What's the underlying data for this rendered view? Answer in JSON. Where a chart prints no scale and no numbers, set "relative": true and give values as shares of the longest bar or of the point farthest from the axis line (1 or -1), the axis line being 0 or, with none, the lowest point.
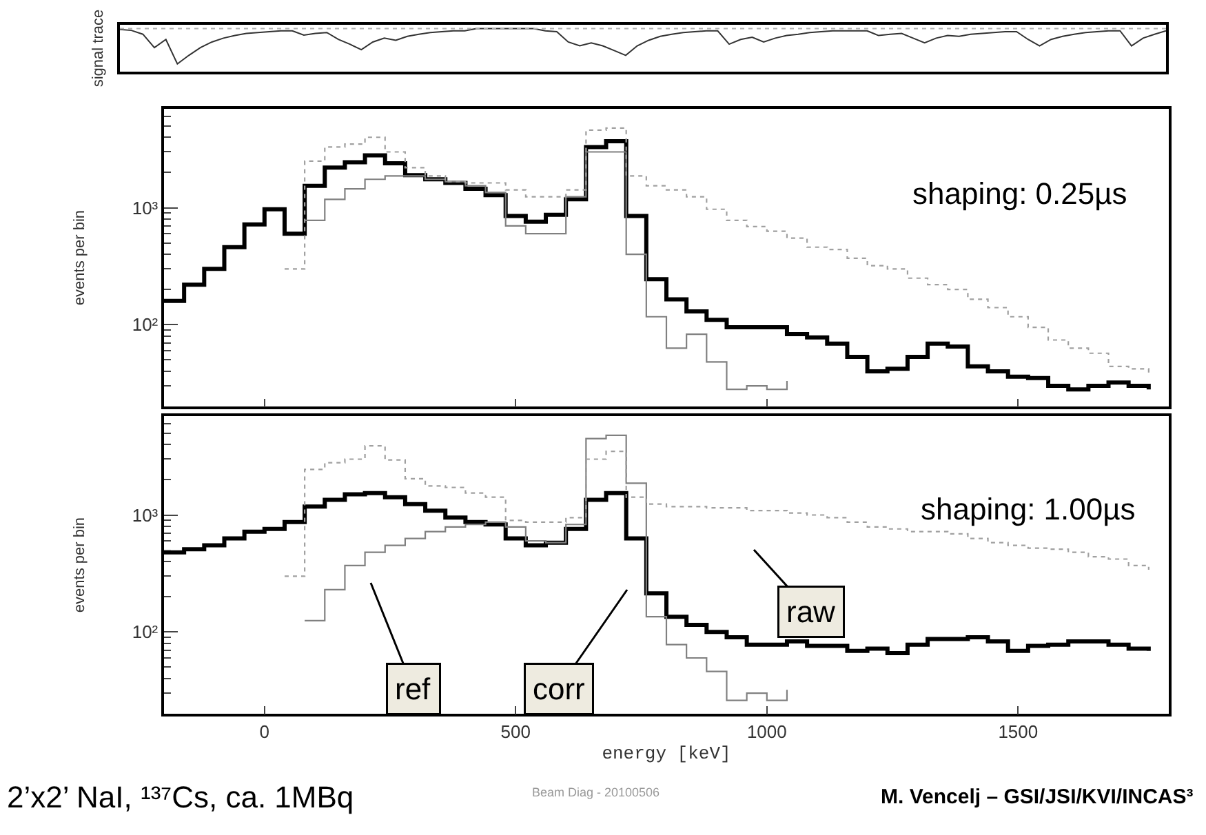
{
  "chart_data": [
    {
      "type": "line",
      "relative": true,
      "ylabel": "signal trace",
      "categories": [
        null,
        null,
        null,
        null,
        null,
        null,
        null,
        null,
        null,
        null,
        null,
        null,
        null,
        null,
        null,
        null,
        null,
        null,
        null,
        null,
        null,
        null,
        null,
        null,
        null,
        null,
        null,
        null,
        null,
        null,
        null,
        null,
        null,
        null,
        null,
        null,
        null,
        null,
        null,
        null,
        null,
        null,
        null,
        null,
        null,
        null,
        null,
        null,
        null,
        null,
        null,
        null,
        null,
        null,
        null,
        null,
        null,
        null,
        null,
        null,
        null,
        null,
        null,
        null,
        null,
        null,
        null,
        null,
        null,
        null,
        null,
        null,
        null,
        null,
        null,
        null,
        null,
        null,
        null,
        null,
        null,
        null,
        null,
        null,
        null,
        null,
        null,
        null,
        null,
        null,
        null,
        null
      ],
      "series": [
        {
          "color": "#333333",
          "values": [
            0.98,
            0.96,
            0.87,
            0.56,
            0.75,
            0.18,
            0.38,
            0.56,
            0.69,
            0.78,
            0.84,
            0.89,
            0.91,
            0.93,
            0.95,
            0.95,
            0.85,
            0.89,
            0.91,
            0.75,
            0.64,
            0.51,
            0.69,
            0.78,
            0.73,
            0.82,
            0.87,
            0.91,
            0.93,
            0.95,
            0.95,
            1.0,
            1.0,
            1.0,
            1.0,
            1.0,
            1.0,
            0.95,
            0.93,
            0.69,
            0.6,
            0.67,
            0.6,
            0.49,
            0.38,
            0.6,
            0.73,
            0.82,
            0.87,
            0.91,
            0.93,
            0.95,
            0.95,
            0.64,
            0.75,
            0.8,
            0.69,
            0.78,
            0.84,
            0.87,
            0.91,
            0.93,
            0.95,
            0.95,
            0.95,
            0.95,
            0.84,
            0.87,
            0.89,
            0.78,
            0.67,
            0.78,
            0.84,
            0.82,
            0.87,
            0.89,
            0.91,
            0.93,
            0.93,
            0.75,
            0.6,
            0.75,
            0.82,
            0.87,
            0.91,
            0.93,
            0.95,
            0.95,
            0.6,
            0.78,
            0.87,
            0.95
          ]
        }
      ],
      "ref_lines": [
        {
          "axis": "y",
          "value": 1,
          "color": "#b0b0b0",
          "line_style": "dotted"
        }
      ]
    },
    {
      "type": "step",
      "ylabel": "events per bin",
      "log": true,
      "tick_labels": "y",
      "xlim": [
        -200,
        1800
      ],
      "xticks": [
        0,
        500,
        1000,
        1500
      ],
      "ylim": [
        20,
        7000
      ],
      "yticks": [
        {
          "value": 20,
          "label": null
        },
        {
          "value": 30,
          "label": null
        },
        {
          "value": 40,
          "label": null
        },
        {
          "value": 50,
          "label": null
        },
        {
          "value": 60,
          "label": null
        },
        {
          "value": 70,
          "label": null
        },
        {
          "value": 80,
          "label": null
        },
        {
          "value": 90,
          "label": null
        },
        {
          "value": 100,
          "label": "10²"
        },
        {
          "value": 200,
          "label": null
        },
        {
          "value": 300,
          "label": null
        },
        {
          "value": 400,
          "label": null
        },
        {
          "value": 500,
          "label": null
        },
        {
          "value": 600,
          "label": null
        },
        {
          "value": 700,
          "label": null
        },
        {
          "value": 800,
          "label": null
        },
        {
          "value": 900,
          "label": null
        },
        {
          "value": 1000,
          "label": "10³"
        },
        {
          "value": 2000,
          "label": null
        },
        {
          "value": 3000,
          "label": null
        },
        {
          "value": 4000,
          "label": null
        },
        {
          "value": 5000,
          "label": null
        },
        {
          "value": 6000,
          "label": null
        },
        {
          "value": 7000,
          "label": null
        }
      ],
      "x": [
        -200,
        -160,
        -120,
        -80,
        -40,
        0,
        40,
        80,
        120,
        160,
        200,
        240,
        280,
        320,
        360,
        400,
        440,
        480,
        520,
        560,
        600,
        640,
        680,
        720,
        760,
        800,
        840,
        880,
        920,
        960,
        1000,
        1040,
        1080,
        1120,
        1160,
        1200,
        1240,
        1280,
        1320,
        1360,
        1400,
        1440,
        1480,
        1520,
        1560,
        1600,
        1640,
        1680,
        1720,
        1760
      ],
      "series": [
        {
          "color": "#000000",
          "line_style": "solid",
          "values": [
            160,
            220,
            300,
            460,
            720,
            970,
            600,
            1540,
            2200,
            2450,
            2800,
            2400,
            1900,
            1750,
            1630,
            1450,
            1280,
            850,
            760,
            870,
            1180,
            3300,
            3700,
            850,
            245,
            165,
            130,
            110,
            95,
            95,
            95,
            83,
            78,
            69,
            53,
            40,
            42,
            53,
            69,
            65,
            44,
            40,
            36,
            35,
            30,
            28,
            30,
            32,
            30,
            28
          ]
        },
        {
          "color": "#808080",
          "line_style": "solid",
          "values": [
            null,
            null,
            null,
            null,
            null,
            null,
            null,
            780,
            1180,
            1450,
            1750,
            1870,
            1870,
            1750,
            1670,
            1540,
            1350,
            700,
            600,
            600,
            1240,
            3000,
            3000,
            400,
            117,
            63,
            83,
            48,
            28,
            30,
            28,
            33,
            null,
            null,
            null,
            null,
            null,
            null,
            null,
            null,
            null,
            null,
            null,
            null,
            null,
            null,
            null,
            null,
            null,
            null
          ]
        },
        {
          "color": "#a0a0a0",
          "line_style": "dotted",
          "values": [
            null,
            null,
            null,
            null,
            null,
            null,
            300,
            2500,
            3300,
            3500,
            4000,
            3000,
            2200,
            1870,
            1670,
            1630,
            1630,
            1420,
            1240,
            1240,
            1420,
            4600,
            4800,
            1870,
            1540,
            1420,
            1240,
            970,
            780,
            690,
            630,
            550,
            460,
            440,
            370,
            320,
            300,
            250,
            220,
            200,
            165,
            140,
            117,
            95,
            74,
            63,
            57,
            44,
            42,
            36
          ]
        }
      ],
      "annotations": [
        "shaping: 0.25µs"
      ]
    },
    {
      "type": "step",
      "ylabel": "events per bin",
      "xlabel": "energy [keV]",
      "log": true,
      "xlim": [
        -200,
        1800
      ],
      "xticks": [
        0,
        500,
        1000,
        1500
      ],
      "ylim": [
        20,
        7000
      ],
      "yticks": [
        {
          "value": 20,
          "label": null
        },
        {
          "value": 30,
          "label": null
        },
        {
          "value": 40,
          "label": null
        },
        {
          "value": 50,
          "label": null
        },
        {
          "value": 60,
          "label": null
        },
        {
          "value": 70,
          "label": null
        },
        {
          "value": 80,
          "label": null
        },
        {
          "value": 90,
          "label": null
        },
        {
          "value": 100,
          "label": "10²"
        },
        {
          "value": 200,
          "label": null
        },
        {
          "value": 300,
          "label": null
        },
        {
          "value": 400,
          "label": null
        },
        {
          "value": 500,
          "label": null
        },
        {
          "value": 600,
          "label": null
        },
        {
          "value": 700,
          "label": null
        },
        {
          "value": 800,
          "label": null
        },
        {
          "value": 900,
          "label": null
        },
        {
          "value": 1000,
          "label": "10³"
        },
        {
          "value": 2000,
          "label": null
        },
        {
          "value": 3000,
          "label": null
        },
        {
          "value": 4000,
          "label": null
        },
        {
          "value": 5000,
          "label": null
        },
        {
          "value": 6000,
          "label": null
        },
        {
          "value": 7000,
          "label": null
        }
      ],
      "x": [
        -200,
        -160,
        -120,
        -80,
        -40,
        0,
        40,
        80,
        120,
        160,
        200,
        240,
        280,
        320,
        360,
        400,
        440,
        480,
        520,
        560,
        600,
        640,
        680,
        720,
        760,
        800,
        840,
        880,
        920,
        960,
        1000,
        1040,
        1080,
        1120,
        1160,
        1200,
        1240,
        1280,
        1320,
        1360,
        1400,
        1440,
        1480,
        1520,
        1560,
        1600,
        1640,
        1680,
        1720,
        1760
      ],
      "series": [
        {
          "color": "#000000",
          "line_style": "solid",
          "values": [
            480,
            510,
            550,
            630,
            720,
            760,
            870,
            1180,
            1350,
            1500,
            1540,
            1420,
            1240,
            1090,
            950,
            870,
            830,
            630,
            550,
            580,
            760,
            1350,
            1540,
            630,
            214,
            135,
            115,
            100,
            90,
            78,
            78,
            83,
            76,
            76,
            69,
            72,
            66,
            78,
            87,
            87,
            90,
            83,
            69,
            76,
            78,
            83,
            83,
            78,
            72,
            69
          ]
        },
        {
          "color": "#808080",
          "line_style": "solid",
          "values": [
            null,
            null,
            null,
            null,
            null,
            null,
            null,
            125,
            230,
            370,
            480,
            550,
            630,
            720,
            790,
            830,
            870,
            790,
            600,
            580,
            830,
            4500,
            4800,
            1870,
            135,
            78,
            60,
            46,
            26,
            30,
            26,
            32,
            null,
            null,
            null,
            null,
            null,
            null,
            null,
            null,
            null,
            null,
            null,
            null,
            null,
            null,
            null,
            null,
            null,
            null
          ]
        },
        {
          "color": "#a0a0a0",
          "line_style": "dotted",
          "values": [
            null,
            null,
            null,
            null,
            null,
            null,
            300,
            2450,
            2800,
            3000,
            3900,
            2950,
            2040,
            1770,
            1720,
            1540,
            1420,
            900,
            870,
            870,
            950,
            3000,
            3500,
            1420,
            1240,
            1180,
            1180,
            1150,
            1150,
            1090,
            1090,
            1040,
            1000,
            950,
            870,
            790,
            760,
            720,
            720,
            690,
            630,
            580,
            550,
            520,
            510,
            480,
            440,
            420,
            370,
            340
          ]
        }
      ],
      "annotations": [
        "shaping: 1.00µs",
        "ref",
        "corr",
        "raw",
        "2’x2’ NaI, ¹³⁷Cs, ca. 1MBq",
        "Beam Diag - 20100506",
        "M. Vencelj – GSI/JSI/KVI/INCAS³"
      ]
    }
  ]
}
